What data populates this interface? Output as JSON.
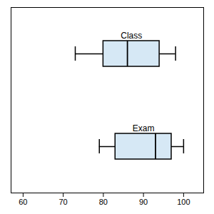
{
  "chart_data": {
    "type": "box",
    "orientation": "horizontal",
    "categories": [
      "Class",
      "Exam"
    ],
    "whislo": [
      73,
      79
    ],
    "q1": [
      80,
      83
    ],
    "med": [
      86,
      93
    ],
    "q3": [
      94,
      97
    ],
    "whishi": [
      98,
      100
    ],
    "color": "#d6e8f5",
    "xlim": [
      57,
      105
    ],
    "xticks": [
      60,
      70,
      80,
      90,
      100
    ],
    "grid": false,
    "tick_labels": "x"
  }
}
